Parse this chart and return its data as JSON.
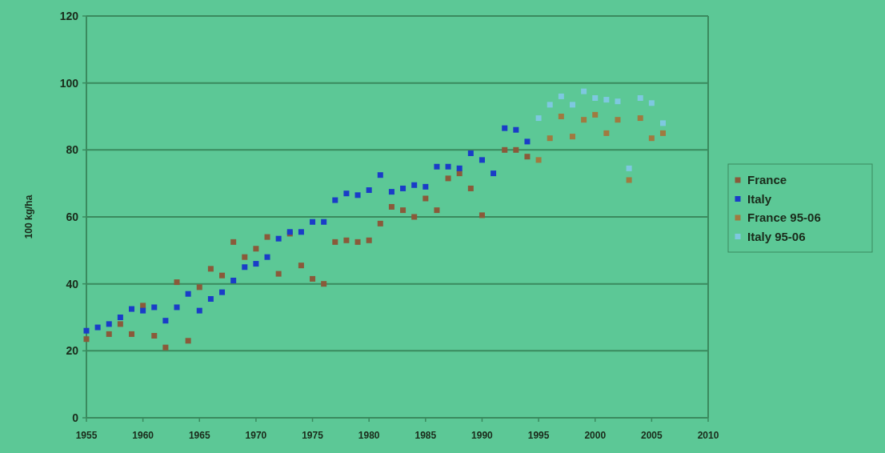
{
  "chart_data": {
    "type": "scatter",
    "ylabel": "100 kg/ha",
    "xlim": [
      1955,
      2010
    ],
    "xticks": [
      1955,
      1960,
      1965,
      1970,
      1975,
      1980,
      1985,
      1990,
      1995,
      2000,
      2005,
      2010
    ],
    "ylim": [
      0,
      120
    ],
    "yticks": [
      0,
      20,
      40,
      60,
      80,
      100,
      120
    ],
    "grid": "y",
    "legend": "right",
    "marker": "square",
    "series": [
      {
        "name": "France",
        "color": "#8a5a3a",
        "x": [
          1955,
          1957,
          1958,
          1959,
          1960,
          1961,
          1962,
          1963,
          1964,
          1965,
          1966,
          1967,
          1968,
          1969,
          1970,
          1971,
          1972,
          1973,
          1974,
          1975,
          1976,
          1977,
          1978,
          1979,
          1980,
          1981,
          1982,
          1983,
          1984,
          1985,
          1986,
          1987,
          1988,
          1989,
          1990,
          1992,
          1993,
          1994
        ],
        "values": [
          23.5,
          25,
          28,
          25,
          33.5,
          24.5,
          21,
          40.5,
          23,
          39,
          44.5,
          42.5,
          52.5,
          48,
          50.5,
          54,
          43,
          55,
          45.5,
          41.5,
          40,
          52.5,
          53,
          52.5,
          53,
          58,
          63,
          62,
          60,
          65.5,
          62,
          71.5,
          73,
          68.5,
          60.5,
          80,
          80,
          78
        ]
      },
      {
        "name": "Italy",
        "color": "#1a3cc8",
        "x": [
          1955,
          1956,
          1957,
          1958,
          1959,
          1960,
          1961,
          1962,
          1963,
          1964,
          1965,
          1966,
          1967,
          1968,
          1969,
          1970,
          1971,
          1972,
          1973,
          1974,
          1975,
          1976,
          1977,
          1978,
          1979,
          1980,
          1981,
          1982,
          1983,
          1984,
          1985,
          1986,
          1987,
          1988,
          1989,
          1990,
          1991,
          1992,
          1993,
          1994
        ],
        "values": [
          26,
          27,
          28,
          30,
          32.5,
          32,
          33,
          29,
          33,
          37,
          32,
          35.5,
          37.5,
          41,
          45,
          46,
          48,
          53.5,
          55.5,
          55.5,
          58.5,
          58.5,
          65,
          67,
          66.5,
          68,
          72.5,
          67.5,
          68.5,
          69.5,
          69,
          75,
          75,
          74.5,
          79,
          77,
          73,
          86.5,
          86,
          82.5
        ]
      },
      {
        "name": "France 95-06",
        "color": "#a07a40",
        "x": [
          1995,
          1996,
          1997,
          1998,
          1999,
          2000,
          2001,
          2002,
          2003,
          2004,
          2005,
          2006
        ],
        "values": [
          77,
          83.5,
          90,
          84,
          89,
          90.5,
          85,
          89,
          71,
          89.5,
          83.5,
          85
        ]
      },
      {
        "name": "Italy 95-06",
        "color": "#7ec8e0",
        "x": [
          1995,
          1996,
          1997,
          1998,
          1999,
          2000,
          2001,
          2002,
          2003,
          2004,
          2005,
          2006
        ],
        "values": [
          89.5,
          93.5,
          96,
          93.5,
          97.5,
          95.5,
          95,
          94.5,
          74.5,
          95.5,
          94,
          88
        ]
      }
    ]
  }
}
